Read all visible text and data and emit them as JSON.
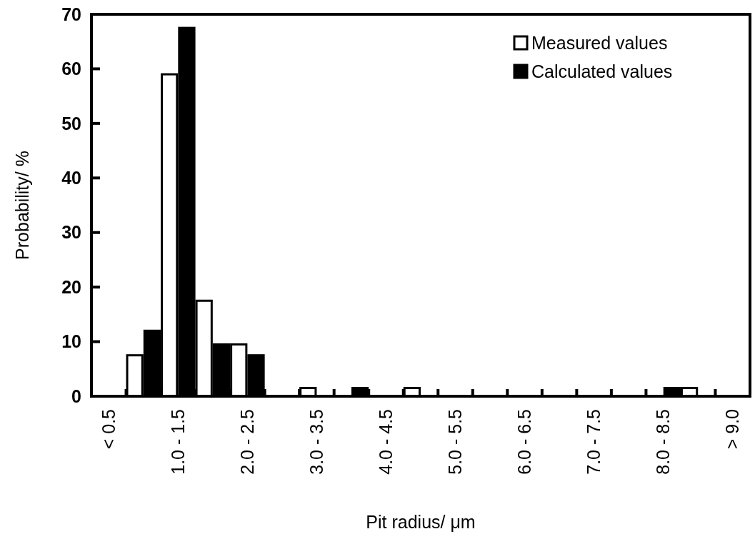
{
  "chart_data": {
    "type": "bar",
    "categories": [
      "< 0.5",
      null,
      "1.0 - 1.5",
      null,
      "2.0 - 2.5",
      null,
      "3.0 - 3.5",
      null,
      "4.0 - 4.5",
      null,
      "5.0 - 5.5",
      null,
      "6.0 - 6.5",
      null,
      "7.0 - 7.5",
      null,
      "8.0 - 8.5",
      null,
      "> 9.0"
    ],
    "series": [
      {
        "name": "Measured values",
        "color": "#ffffff",
        "values": [
          0,
          7.5,
          59,
          17.5,
          9.5,
          0,
          1.5,
          0,
          0,
          1.5,
          0,
          0,
          0,
          0,
          0,
          0,
          0,
          1.5,
          0
        ]
      },
      {
        "name": "Calculated values",
        "color": "#000000",
        "values": [
          0,
          12,
          67.5,
          9.5,
          7.5,
          0,
          0,
          1.5,
          0,
          0,
          0,
          0,
          0,
          0,
          0,
          0,
          1.5,
          0,
          0
        ]
      }
    ],
    "xlabel": "Pit radius/ μm",
    "ylabel": "Probability/ %",
    "ylim": [
      0,
      70
    ],
    "yticks": [
      0,
      10,
      20,
      30,
      40,
      50,
      60,
      70
    ],
    "grid": false,
    "legend": "top right"
  }
}
